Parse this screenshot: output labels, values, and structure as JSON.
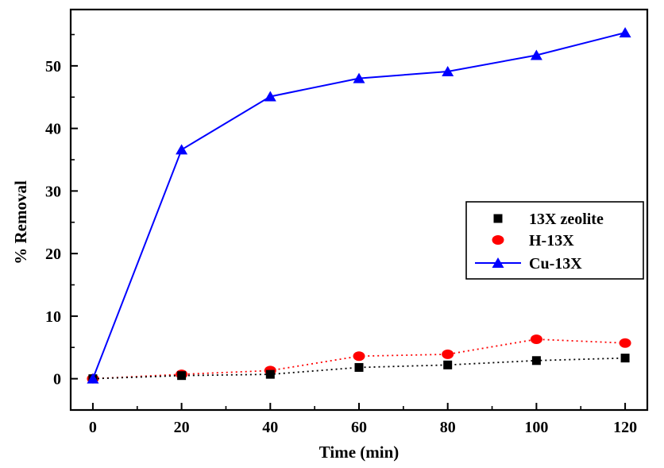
{
  "chart_data": {
    "type": "line",
    "title": "",
    "xlabel": "Time (min)",
    "ylabel": "% Removal",
    "xlim": [
      -5,
      125
    ],
    "ylim": [
      -5,
      59
    ],
    "x_ticks": [
      0,
      20,
      40,
      60,
      80,
      100,
      120
    ],
    "y_ticks": [
      0,
      10,
      20,
      30,
      40,
      50
    ],
    "grid": false,
    "legend_position": "center-right",
    "series": [
      {
        "name": "13X zeolite",
        "x": [
          0,
          20,
          40,
          60,
          80,
          100,
          120
        ],
        "values": [
          0,
          0.5,
          0.7,
          1.8,
          2.2,
          2.9,
          3.3
        ],
        "color": "#000000",
        "marker": "square",
        "line": "dotted"
      },
      {
        "name": "H-13X",
        "x": [
          0,
          20,
          40,
          60,
          80,
          100,
          120
        ],
        "values": [
          0,
          0.7,
          1.3,
          3.6,
          3.9,
          6.3,
          5.7
        ],
        "color": "#ff0000",
        "marker": "circle",
        "line": "dotted"
      },
      {
        "name": "Cu-13X",
        "x": [
          0,
          20,
          40,
          60,
          80,
          100,
          120
        ],
        "values": [
          0,
          36.6,
          45.1,
          48.0,
          49.1,
          51.7,
          55.3
        ],
        "color": "#0000ff",
        "marker": "triangle",
        "line": "solid"
      }
    ]
  }
}
